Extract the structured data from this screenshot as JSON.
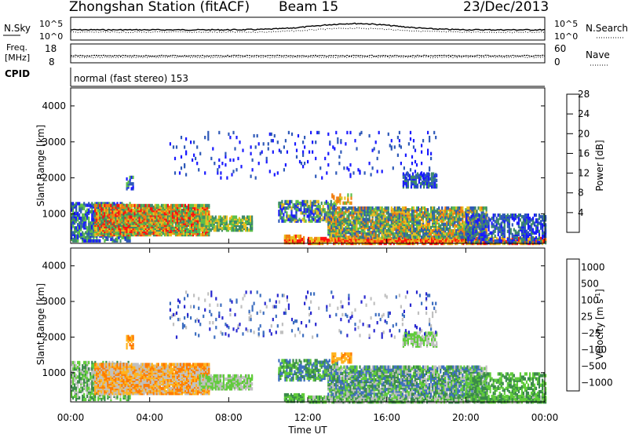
{
  "header": {
    "station": "Zhongshan Station (fitACF)",
    "beam": "Beam 15",
    "date": "23/Dec/2013"
  },
  "strip_top": {
    "left_label": "N.Sky",
    "left_ticks": [
      "10^5",
      "10^0"
    ],
    "right_ticks": [
      "10^5",
      "10^0"
    ],
    "right_label": "N.Search"
  },
  "strip_freq": {
    "left_label_1": "Freq.",
    "left_label_2": "[MHz]",
    "left_ticks": [
      "18",
      "8"
    ],
    "right_ticks": [
      "60",
      "0"
    ],
    "right_label": "Nave"
  },
  "cpid": {
    "label": "CPID",
    "mode": "normal (fast stereo) 153"
  },
  "colors": {
    "power": [
      "#1a1aff",
      "#2e59b8",
      "#3d8a6a",
      "#5cc04a",
      "#e8c020",
      "#f07d10",
      "#ff1010"
    ],
    "velocity": [
      "#ff0000",
      "#ff7a00",
      "#ffb41e",
      "#c0c0c0",
      "#60cc3a",
      "#3a8a4a",
      "#3d6ec0",
      "#2828d0"
    ]
  },
  "chart_data": [
    {
      "type": "heatmap",
      "name": "power",
      "ylabel": "Slant Range [km]",
      "xlim": [
        "00:00",
        "00:00"
      ],
      "ylim": [
        180,
        4500
      ],
      "yticks": [
        "1000",
        "2000",
        "3000",
        "4000"
      ],
      "colorbar_label": "Power [dB]",
      "colorbar_ticks": [
        "4",
        "8",
        "12",
        "16",
        "20",
        "24",
        "28"
      ],
      "clim": [
        0,
        30
      ]
    },
    {
      "type": "heatmap",
      "name": "velocity",
      "ylabel": "Slant Range [km]",
      "xlabel": "Time UT",
      "xticks": [
        "00:00",
        "04:00",
        "08:00",
        "12:00",
        "16:00",
        "20:00",
        "00:00"
      ],
      "ylim": [
        180,
        4500
      ],
      "yticks": [
        "1000",
        "2000",
        "3000",
        "4000"
      ],
      "colorbar_label": "Velocity [m s",
      "colorbar_label_sup": "-1",
      "colorbar_label_end": "]",
      "colorbar_ticks": [
        "1000",
        "500",
        "100",
        "25",
        "−25",
        "−100",
        "−500",
        "−1000"
      ]
    }
  ]
}
